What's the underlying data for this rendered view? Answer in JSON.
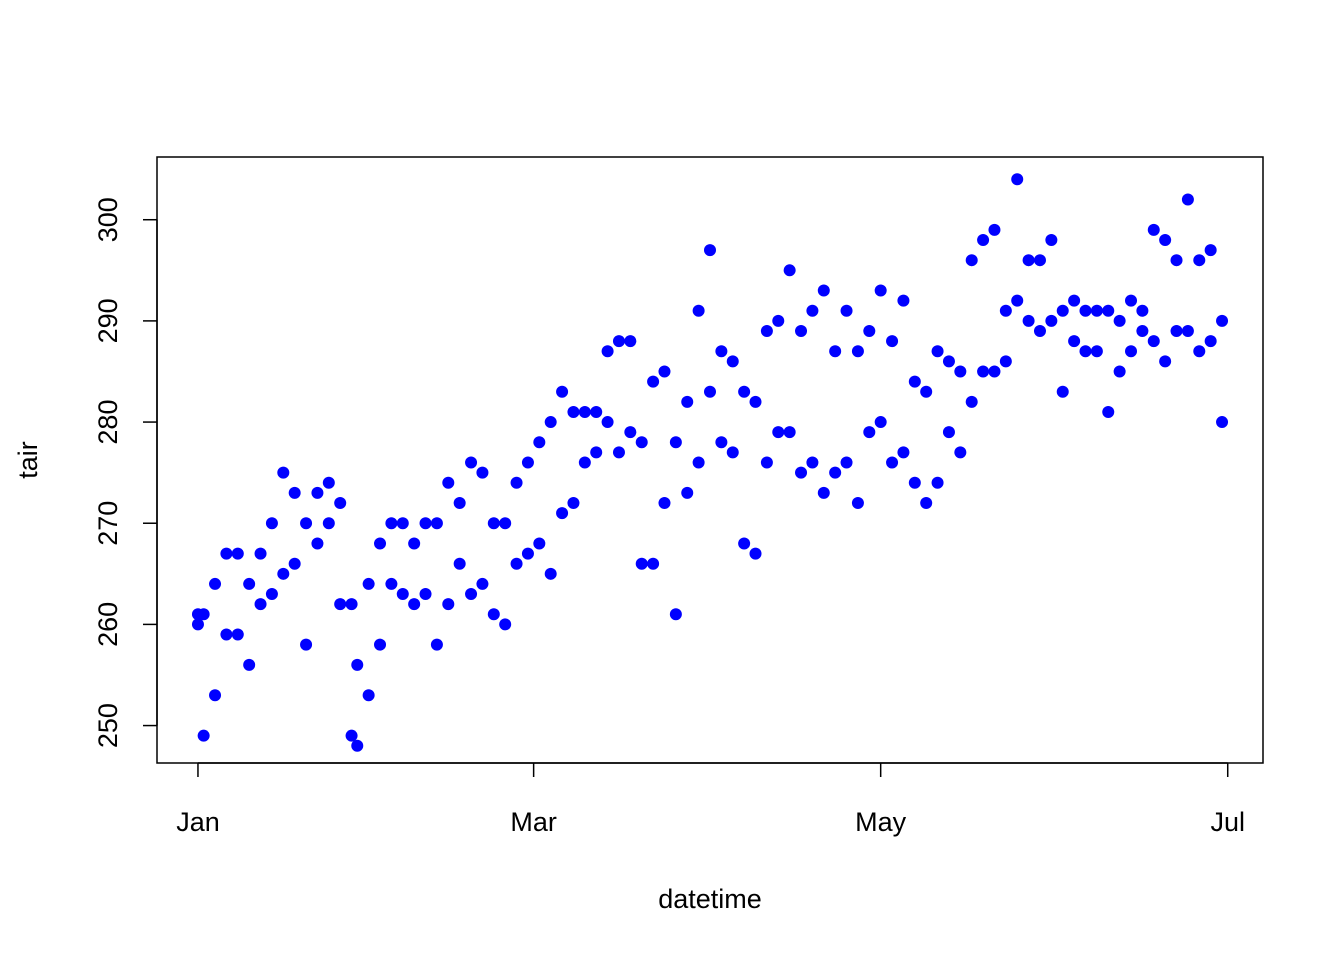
{
  "chart_data": {
    "type": "scatter",
    "x_label": "datetime",
    "y_label": "tair",
    "color": "#0000ff",
    "xlim": [
      -7.2,
      187.2
    ],
    "ylim": [
      246.3,
      306.2
    ],
    "xticks": [
      {
        "value": 0,
        "label": "Jan"
      },
      {
        "value": 59,
        "label": "Mar"
      },
      {
        "value": 120,
        "label": "May"
      },
      {
        "value": 181,
        "label": "Jul"
      }
    ],
    "yticks": [
      250,
      260,
      270,
      280,
      290,
      300
    ],
    "x": [
      0,
      0,
      1,
      1,
      3,
      3,
      5,
      5,
      7,
      7,
      9,
      9,
      11,
      11,
      13,
      13,
      15,
      15,
      17,
      17,
      19,
      19,
      21,
      21,
      23,
      23,
      25,
      25,
      27,
      27,
      28,
      28,
      30,
      30,
      32,
      32,
      34,
      34,
      36,
      36,
      38,
      38,
      40,
      40,
      42,
      42,
      44,
      44,
      46,
      46,
      48,
      48,
      50,
      50,
      52,
      52,
      54,
      54,
      56,
      56,
      58,
      58,
      60,
      60,
      62,
      62,
      64,
      64,
      66,
      66,
      68,
      68,
      70,
      70,
      72,
      72,
      74,
      74,
      76,
      76,
      78,
      78,
      80,
      80,
      82,
      82,
      84,
      84,
      86,
      86,
      88,
      88,
      90,
      90,
      92,
      92,
      94,
      94,
      96,
      96,
      98,
      98,
      100,
      100,
      102,
      102,
      104,
      104,
      106,
      106,
      108,
      108,
      110,
      110,
      112,
      112,
      114,
      114,
      116,
      116,
      118,
      118,
      120,
      120,
      122,
      122,
      124,
      124,
      126,
      126,
      128,
      128,
      130,
      130,
      132,
      132,
      134,
      134,
      136,
      136,
      138,
      138,
      140,
      140,
      142,
      142,
      144,
      144,
      146,
      146,
      148,
      148,
      150,
      150,
      152,
      152,
      154,
      154,
      156,
      156,
      158,
      158,
      160,
      160,
      162,
      162,
      164,
      164,
      166,
      166,
      168,
      168,
      170,
      170,
      172,
      172,
      174,
      174,
      176,
      176,
      178,
      178,
      180,
      180
    ],
    "values": [
      260,
      261,
      249,
      261,
      253,
      264,
      259,
      267,
      259,
      267,
      256,
      264,
      262,
      267,
      263,
      270,
      265,
      275,
      266,
      273,
      258,
      270,
      268,
      273,
      270,
      274,
      262,
      272,
      249,
      262,
      248,
      256,
      253,
      264,
      258,
      268,
      264,
      270,
      263,
      270,
      262,
      268,
      263,
      270,
      258,
      270,
      262,
      274,
      266,
      272,
      263,
      276,
      264,
      275,
      261,
      270,
      260,
      270,
      266,
      274,
      267,
      276,
      268,
      278,
      265,
      280,
      271,
      283,
      272,
      281,
      276,
      281,
      277,
      281,
      280,
      287,
      277,
      288,
      279,
      288,
      266,
      278,
      266,
      284,
      272,
      285,
      261,
      278,
      273,
      282,
      276,
      291,
      283,
      297,
      278,
      287,
      277,
      286,
      268,
      283,
      267,
      282,
      276,
      289,
      279,
      290,
      279,
      295,
      275,
      289,
      276,
      291,
      273,
      293,
      275,
      287,
      276,
      291,
      272,
      287,
      279,
      289,
      280,
      293,
      276,
      288,
      277,
      292,
      274,
      284,
      272,
      283,
      274,
      287,
      279,
      286,
      277,
      285,
      282,
      296,
      285,
      298,
      285,
      299,
      286,
      291,
      292,
      304,
      290,
      296,
      289,
      296,
      290,
      298,
      283,
      291,
      288,
      292,
      287,
      291,
      287,
      291,
      281,
      291,
      285,
      290,
      287,
      292,
      289,
      291,
      288,
      299,
      286,
      298,
      289,
      296,
      289,
      302,
      287,
      296,
      288,
      297,
      280,
      290
    ]
  }
}
